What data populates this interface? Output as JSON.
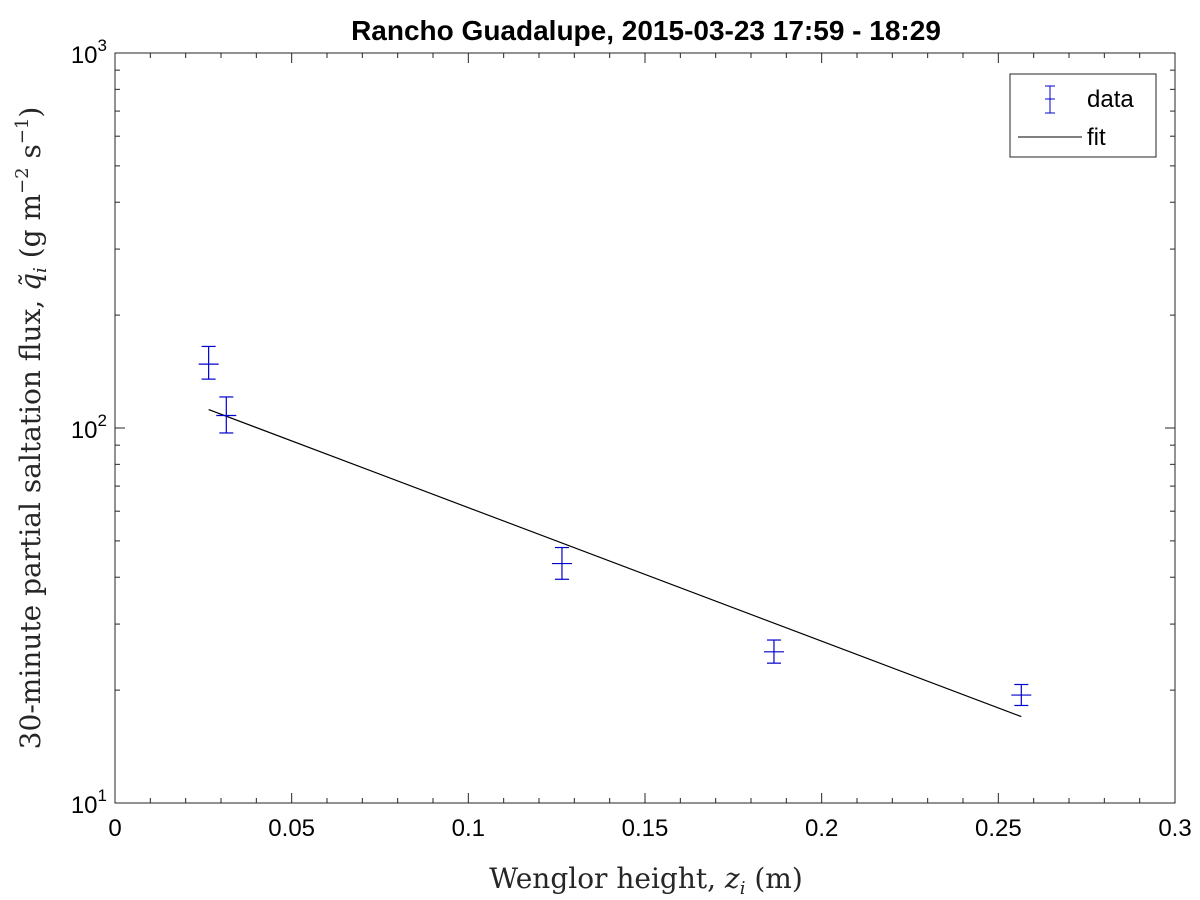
{
  "chart_data": {
    "type": "scatter",
    "title": "Rancho Guadalupe, 2015-03-23 17:59 - 18:29",
    "xlabel": "Wenglor height, z_i (m)",
    "xlabel_parts": {
      "main": "Wenglor height, ",
      "var": "z",
      "sub": "i",
      "unit": " (m)"
    },
    "ylabel": "30-minute partial saltation flux, q̃_i (g m^-2 s^-1)",
    "ylabel_parts": {
      "main": "30-minute partial saltation flux, ",
      "var": "q̃",
      "sub": "i",
      "unit_a": " (g m",
      "exp1": "−2",
      "unit_b": " s",
      "exp2": "−1",
      "unit_c": ")"
    },
    "xlim": [
      0,
      0.3
    ],
    "ylim": [
      10,
      1000
    ],
    "yscale": "log",
    "xticks": [
      0,
      0.05,
      0.1,
      0.15,
      0.2,
      0.25,
      0.3
    ],
    "xtick_labels": [
      "0",
      "0.05",
      "0.1",
      "0.15",
      "0.2",
      "0.25",
      "0.3"
    ],
    "yticks": [
      {
        "value": 10,
        "base": "10",
        "exp": "1"
      },
      {
        "value": 100,
        "base": "10",
        "exp": "2"
      },
      {
        "value": 1000,
        "base": "10",
        "exp": "3"
      }
    ],
    "grid": false,
    "legend_position": "top-right",
    "series": [
      {
        "name": "data",
        "kind": "errorbar",
        "color": "#0000cc",
        "x": [
          0.0265,
          0.0315,
          0.1265,
          0.1865,
          0.2565
        ],
        "y": [
          148,
          108,
          43.5,
          25.3,
          19.4
        ],
        "y_lower": [
          135,
          97,
          39.5,
          23.6,
          18.2
        ],
        "y_upper": [
          165,
          121,
          48,
          27.2,
          20.7
        ]
      },
      {
        "name": "fit",
        "kind": "line",
        "color": "#000000",
        "x": [
          0.0265,
          0.2565
        ],
        "y": [
          112,
          17
        ]
      }
    ]
  }
}
